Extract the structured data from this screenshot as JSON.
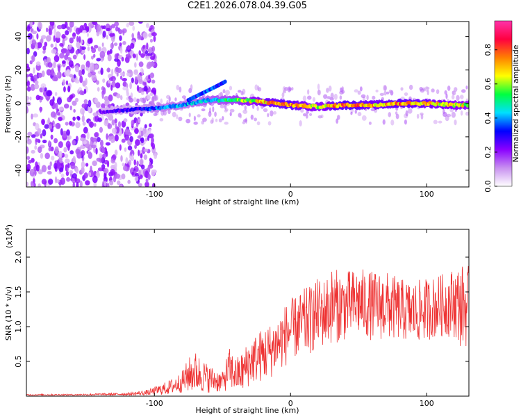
{
  "page_title": "C2E1.2026.078.04.39.G05",
  "chart_data": [
    {
      "type": "heatmap",
      "name": "spectrogram",
      "xlabel": "Height of straight line (km)",
      "ylabel": "Frequency (Hz)",
      "xlim": [
        -194,
        131
      ],
      "ylim": [
        -50,
        49
      ],
      "xticks": [
        -100,
        0,
        100
      ],
      "xtick_labels": [
        "-100",
        "0",
        "100"
      ],
      "yticks": [
        -40,
        -20,
        0,
        20,
        40
      ],
      "ytick_labels": [
        "-40",
        "-20",
        "0",
        "20",
        "40"
      ],
      "colorbar": {
        "label": "Normalized spectral amplitude",
        "range": [
          0.0,
          0.97
        ],
        "ticks": [
          0.0,
          0.2,
          0.4,
          0.6,
          0.8
        ],
        "tick_labels": [
          "0.0",
          "0.2",
          "0.4",
          "0.6",
          "0.8"
        ],
        "colors": [
          "#ffffff",
          "#c890f0",
          "#8a00ff",
          "#0000ff",
          "#00e0ff",
          "#00ff40",
          "#ffff00",
          "#ff8000",
          "#ff0040",
          "#ff33aa"
        ]
      },
      "signal_track": [
        {
          "x": -140,
          "freq": -5,
          "amp": 0.25
        },
        {
          "x": -120,
          "freq": -4,
          "amp": 0.3
        },
        {
          "x": -100,
          "freq": -3,
          "amp": 0.4
        },
        {
          "x": -80,
          "freq": -1,
          "amp": 0.45
        },
        {
          "x": -60,
          "freq": 2,
          "amp": 0.5
        },
        {
          "x": -40,
          "freq": 2,
          "amp": 0.6
        },
        {
          "x": -20,
          "freq": 1,
          "amp": 0.8
        },
        {
          "x": 0,
          "freq": -1,
          "amp": 0.85
        },
        {
          "x": 20,
          "freq": -2,
          "amp": 0.7
        },
        {
          "x": 40,
          "freq": -1,
          "amp": 0.9
        },
        {
          "x": 60,
          "freq": -1,
          "amp": 0.8
        },
        {
          "x": 80,
          "freq": 0,
          "amp": 0.85
        },
        {
          "x": 100,
          "freq": 0,
          "amp": 0.8
        },
        {
          "x": 120,
          "freq": -1,
          "amp": 0.75
        },
        {
          "x": 131,
          "freq": -1,
          "amp": 0.7
        }
      ],
      "branch_track": [
        {
          "x": -75,
          "freq": 2,
          "amp": 0.4
        },
        {
          "x": -65,
          "freq": 6,
          "amp": 0.45
        },
        {
          "x": -55,
          "freq": 10,
          "amp": 0.4
        },
        {
          "x": -48,
          "freq": 13,
          "amp": 0.35
        }
      ]
    },
    {
      "type": "line",
      "name": "snr",
      "xlabel": "Height of straight line (km)",
      "ylabel": "SNR (10 * v/v)",
      "yscale_label": "(x10",
      "yscale_exponent": "4",
      "xlim": [
        -194,
        131
      ],
      "ylim": [
        0,
        2.4
      ],
      "xticks": [
        -100,
        0,
        100
      ],
      "xtick_labels": [
        "-100",
        "0",
        "100"
      ],
      "yticks": [
        0.5,
        1.0,
        1.5,
        2.0
      ],
      "ytick_labels": [
        "0.5",
        "1.0",
        "1.5",
        "2.0"
      ],
      "color": "#ee3333",
      "series": [
        {
          "name": "SNR",
          "x": [
            -194,
            -160,
            -120,
            -105,
            -90,
            -80,
            -75,
            -70,
            -60,
            -50,
            -45,
            -40,
            -35,
            -30,
            -25,
            -20,
            -15,
            -10,
            -5,
            0,
            5,
            10,
            15,
            20,
            25,
            30,
            40,
            50,
            60,
            70,
            80,
            90,
            100,
            110,
            120,
            125,
            131
          ],
          "y": [
            0.02,
            0.02,
            0.03,
            0.05,
            0.12,
            0.2,
            0.3,
            0.35,
            0.25,
            0.2,
            0.4,
            0.3,
            0.35,
            0.5,
            0.55,
            0.6,
            0.65,
            0.75,
            0.85,
            0.95,
            1.0,
            1.05,
            1.1,
            1.2,
            1.2,
            1.3,
            1.3,
            1.35,
            1.3,
            1.3,
            1.25,
            1.2,
            1.25,
            1.3,
            1.35,
            1.3,
            1.3
          ],
          "spread": [
            0.01,
            0.01,
            0.02,
            0.04,
            0.1,
            0.15,
            0.25,
            0.3,
            0.2,
            0.15,
            0.3,
            0.25,
            0.3,
            0.35,
            0.35,
            0.4,
            0.4,
            0.4,
            0.45,
            0.45,
            0.45,
            0.5,
            0.5,
            0.5,
            0.5,
            0.55,
            0.5,
            0.5,
            0.5,
            0.5,
            0.45,
            0.45,
            0.45,
            0.45,
            0.5,
            0.6,
            0.6
          ]
        }
      ]
    }
  ]
}
